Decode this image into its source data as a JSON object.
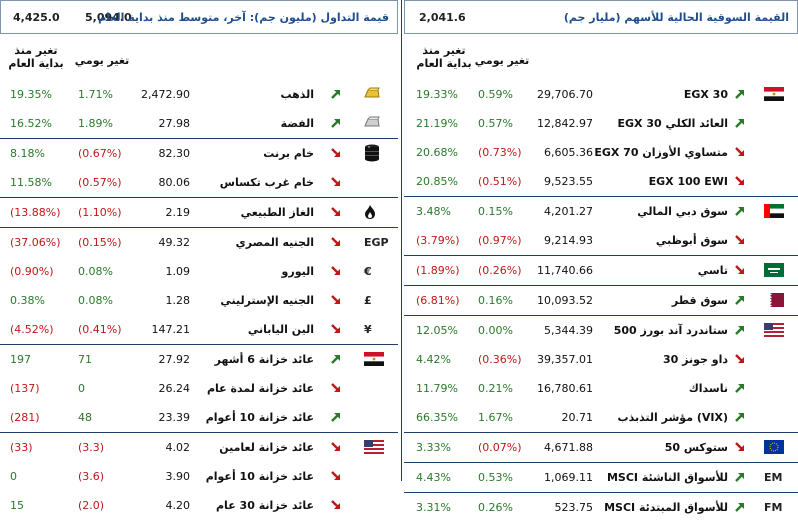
{
  "left": {
    "title": "قيمة التداول (مليون جم): آخر، متوسط منذ بداية العام",
    "value1": "4,425.0",
    "value2": "5,094.0",
    "header_ytd": "تغير منذ بداية العام",
    "header_daily": "تغير يومي",
    "rows": [
      {
        "name": "الذهب",
        "price": "2,472.90",
        "daily": "1.71%",
        "ytd": "19.35%",
        "dir": "up",
        "dsign": "pos",
        "ysign": "pos",
        "icon": "gold-bar-icon",
        "sep": false
      },
      {
        "name": "الفضة",
        "price": "27.98",
        "daily": "1.89%",
        "ytd": "16.52%",
        "dir": "up",
        "dsign": "pos",
        "ysign": "pos",
        "icon": "silver-bar-icon",
        "sep": false
      },
      {
        "name": "خام برنت",
        "price": "82.30",
        "daily": "(0.67%)",
        "ytd": "8.18%",
        "dir": "down",
        "dsign": "neg",
        "ysign": "pos",
        "icon": "oil-barrel-icon",
        "sep": true
      },
      {
        "name": "خام غرب تكساس",
        "price": "80.06",
        "daily": "(0.57%)",
        "ytd": "11.58%",
        "dir": "down",
        "dsign": "neg",
        "ysign": "pos",
        "icon": "",
        "sep": false
      },
      {
        "name": "الغاز الطبيعي",
        "price": "2.19",
        "daily": "(1.10%)",
        "ytd": "(13.88%)",
        "dir": "down",
        "dsign": "neg",
        "ysign": "neg",
        "icon": "flame-icon",
        "sep": true
      },
      {
        "name": "الجنيه المصري",
        "price": "49.32",
        "daily": "(0.15%)",
        "ytd": "(37.06%)",
        "dir": "down",
        "dsign": "neg",
        "ysign": "neg",
        "icon": "EGP",
        "sep": true
      },
      {
        "name": "اليورو",
        "price": "1.09",
        "daily": "0.08%",
        "ytd": "(0.90%)",
        "dir": "down",
        "dsign": "pos",
        "ysign": "neg",
        "icon": "€",
        "sep": false
      },
      {
        "name": "الجنيه الإسترليني",
        "price": "1.28",
        "daily": "0.08%",
        "ytd": "0.38%",
        "dir": "down",
        "dsign": "pos",
        "ysign": "pos",
        "icon": "£",
        "sep": false
      },
      {
        "name": "الين الياباني",
        "price": "147.21",
        "daily": "(0.41%)",
        "ytd": "(4.52%)",
        "dir": "down",
        "dsign": "neg",
        "ysign": "neg",
        "icon": "¥",
        "sep": false
      },
      {
        "name": "عائد خزانة 6 أشهر",
        "price": "27.92",
        "daily": "71",
        "ytd": "197",
        "dir": "up",
        "dsign": "pos",
        "ysign": "pos",
        "icon": "egypt-flag-icon",
        "sep": true
      },
      {
        "name": "عائد خزانة لمدة عام",
        "price": "26.24",
        "daily": "0",
        "ytd": "(137)",
        "dir": "down",
        "dsign": "pos",
        "ysign": "neg",
        "icon": "",
        "sep": false
      },
      {
        "name": "عائد خزانة 10 أعوام",
        "price": "23.39",
        "daily": "48",
        "ytd": "(281)",
        "dir": "up",
        "dsign": "pos",
        "ysign": "neg",
        "icon": "",
        "sep": false
      },
      {
        "name": "عائد خزانة لعامين",
        "price": "4.02",
        "daily": "(3.3)",
        "ytd": "(33)",
        "dir": "down",
        "dsign": "neg",
        "ysign": "neg",
        "icon": "us-flag-icon",
        "sep": true
      },
      {
        "name": "عائد خزانة 10 أعوام",
        "price": "3.90",
        "daily": "(3.6)",
        "ytd": "0",
        "dir": "down",
        "dsign": "neg",
        "ysign": "pos",
        "icon": "",
        "sep": false
      },
      {
        "name": "عائد خزانة 30 عام",
        "price": "4.20",
        "daily": "(2.0)",
        "ytd": "15",
        "dir": "down",
        "dsign": "neg",
        "ysign": "pos",
        "icon": "",
        "sep": false
      }
    ]
  },
  "right": {
    "title": "القيمة السوقية الحالية للأسهم (مليار جم)",
    "value1": "2,041.6",
    "header_ytd": "تغير منذ بداية العام",
    "header_daily": "تغير يومي",
    "rows": [
      {
        "name": "EGX 30",
        "price": "29,706.70",
        "daily": "0.59%",
        "ytd": "19.33%",
        "dir": "up",
        "dsign": "pos",
        "ysign": "pos",
        "icon": "egypt-flag-icon",
        "sep": false
      },
      {
        "name": "EGX 30 العائد الكلي",
        "price": "12,842.97",
        "daily": "0.57%",
        "ytd": "21.19%",
        "dir": "up",
        "dsign": "pos",
        "ysign": "pos",
        "icon": "",
        "sep": false
      },
      {
        "name": "EGX 70 متساوي الأوزان",
        "price": "6,605.36",
        "daily": "(0.73%)",
        "ytd": "20.68%",
        "dir": "down",
        "dsign": "neg",
        "ysign": "pos",
        "icon": "",
        "sep": false
      },
      {
        "name": "EGX 100 EWI",
        "price": "9,523.55",
        "daily": "(0.51%)",
        "ytd": "20.85%",
        "dir": "down",
        "dsign": "neg",
        "ysign": "pos",
        "icon": "",
        "sep": false
      },
      {
        "name": "سوق دبي المالي",
        "price": "4,201.27",
        "daily": "0.15%",
        "ytd": "3.48%",
        "dir": "up",
        "dsign": "pos",
        "ysign": "pos",
        "icon": "uae-flag-icon",
        "sep": true
      },
      {
        "name": "سوق أبوظبي",
        "price": "9,214.93",
        "daily": "(0.97%)",
        "ytd": "(3.79%)",
        "dir": "down",
        "dsign": "neg",
        "ysign": "neg",
        "icon": "",
        "sep": false
      },
      {
        "name": "تاسي",
        "price": "11,740.66",
        "daily": "(0.26%)",
        "ytd": "(1.89%)",
        "dir": "down",
        "dsign": "neg",
        "ysign": "neg",
        "icon": "saudi-flag-icon",
        "sep": true
      },
      {
        "name": "سوق قطر",
        "price": "10,093.52",
        "daily": "0.16%",
        "ytd": "(6.81%)",
        "dir": "up",
        "dsign": "pos",
        "ysign": "neg",
        "icon": "qatar-flag-icon",
        "sep": true
      },
      {
        "name": "ستاندرد آند بورز 500",
        "price": "5,344.39",
        "daily": "0.00%",
        "ytd": "12.05%",
        "dir": "up",
        "dsign": "pos",
        "ysign": "pos",
        "icon": "us-flag-icon",
        "sep": true
      },
      {
        "name": "داو جونز 30",
        "price": "39,357.01",
        "daily": "(0.36%)",
        "ytd": "4.42%",
        "dir": "down",
        "dsign": "neg",
        "ysign": "pos",
        "icon": "",
        "sep": false
      },
      {
        "name": "ناسداك",
        "price": "16,780.61",
        "daily": "0.21%",
        "ytd": "11.79%",
        "dir": "up",
        "dsign": "pos",
        "ysign": "pos",
        "icon": "",
        "sep": false
      },
      {
        "name": "مؤشر التذبذب (VIX)",
        "price": "20.71",
        "daily": "1.67%",
        "ytd": "66.35%",
        "dir": "up",
        "dsign": "pos",
        "ysign": "pos",
        "icon": "",
        "sep": false
      },
      {
        "name": "ستوكس 50",
        "price": "4,671.88",
        "daily": "(0.07%)",
        "ytd": "3.33%",
        "dir": "down",
        "dsign": "neg",
        "ysign": "pos",
        "icon": "eu-flag-icon",
        "sep": true
      },
      {
        "name": "MSCI للأسواق الناشئة",
        "price": "1,069.11",
        "daily": "0.53%",
        "ytd": "4.43%",
        "dir": "up",
        "dsign": "pos",
        "ysign": "pos",
        "icon": "EM",
        "sep": true
      },
      {
        "name": "MSCI للأسواق المبتدئة",
        "price": "523.75",
        "daily": "0.26%",
        "ytd": "3.31%",
        "dir": "up",
        "dsign": "pos",
        "ysign": "pos",
        "icon": "FM",
        "sep": true
      }
    ]
  }
}
